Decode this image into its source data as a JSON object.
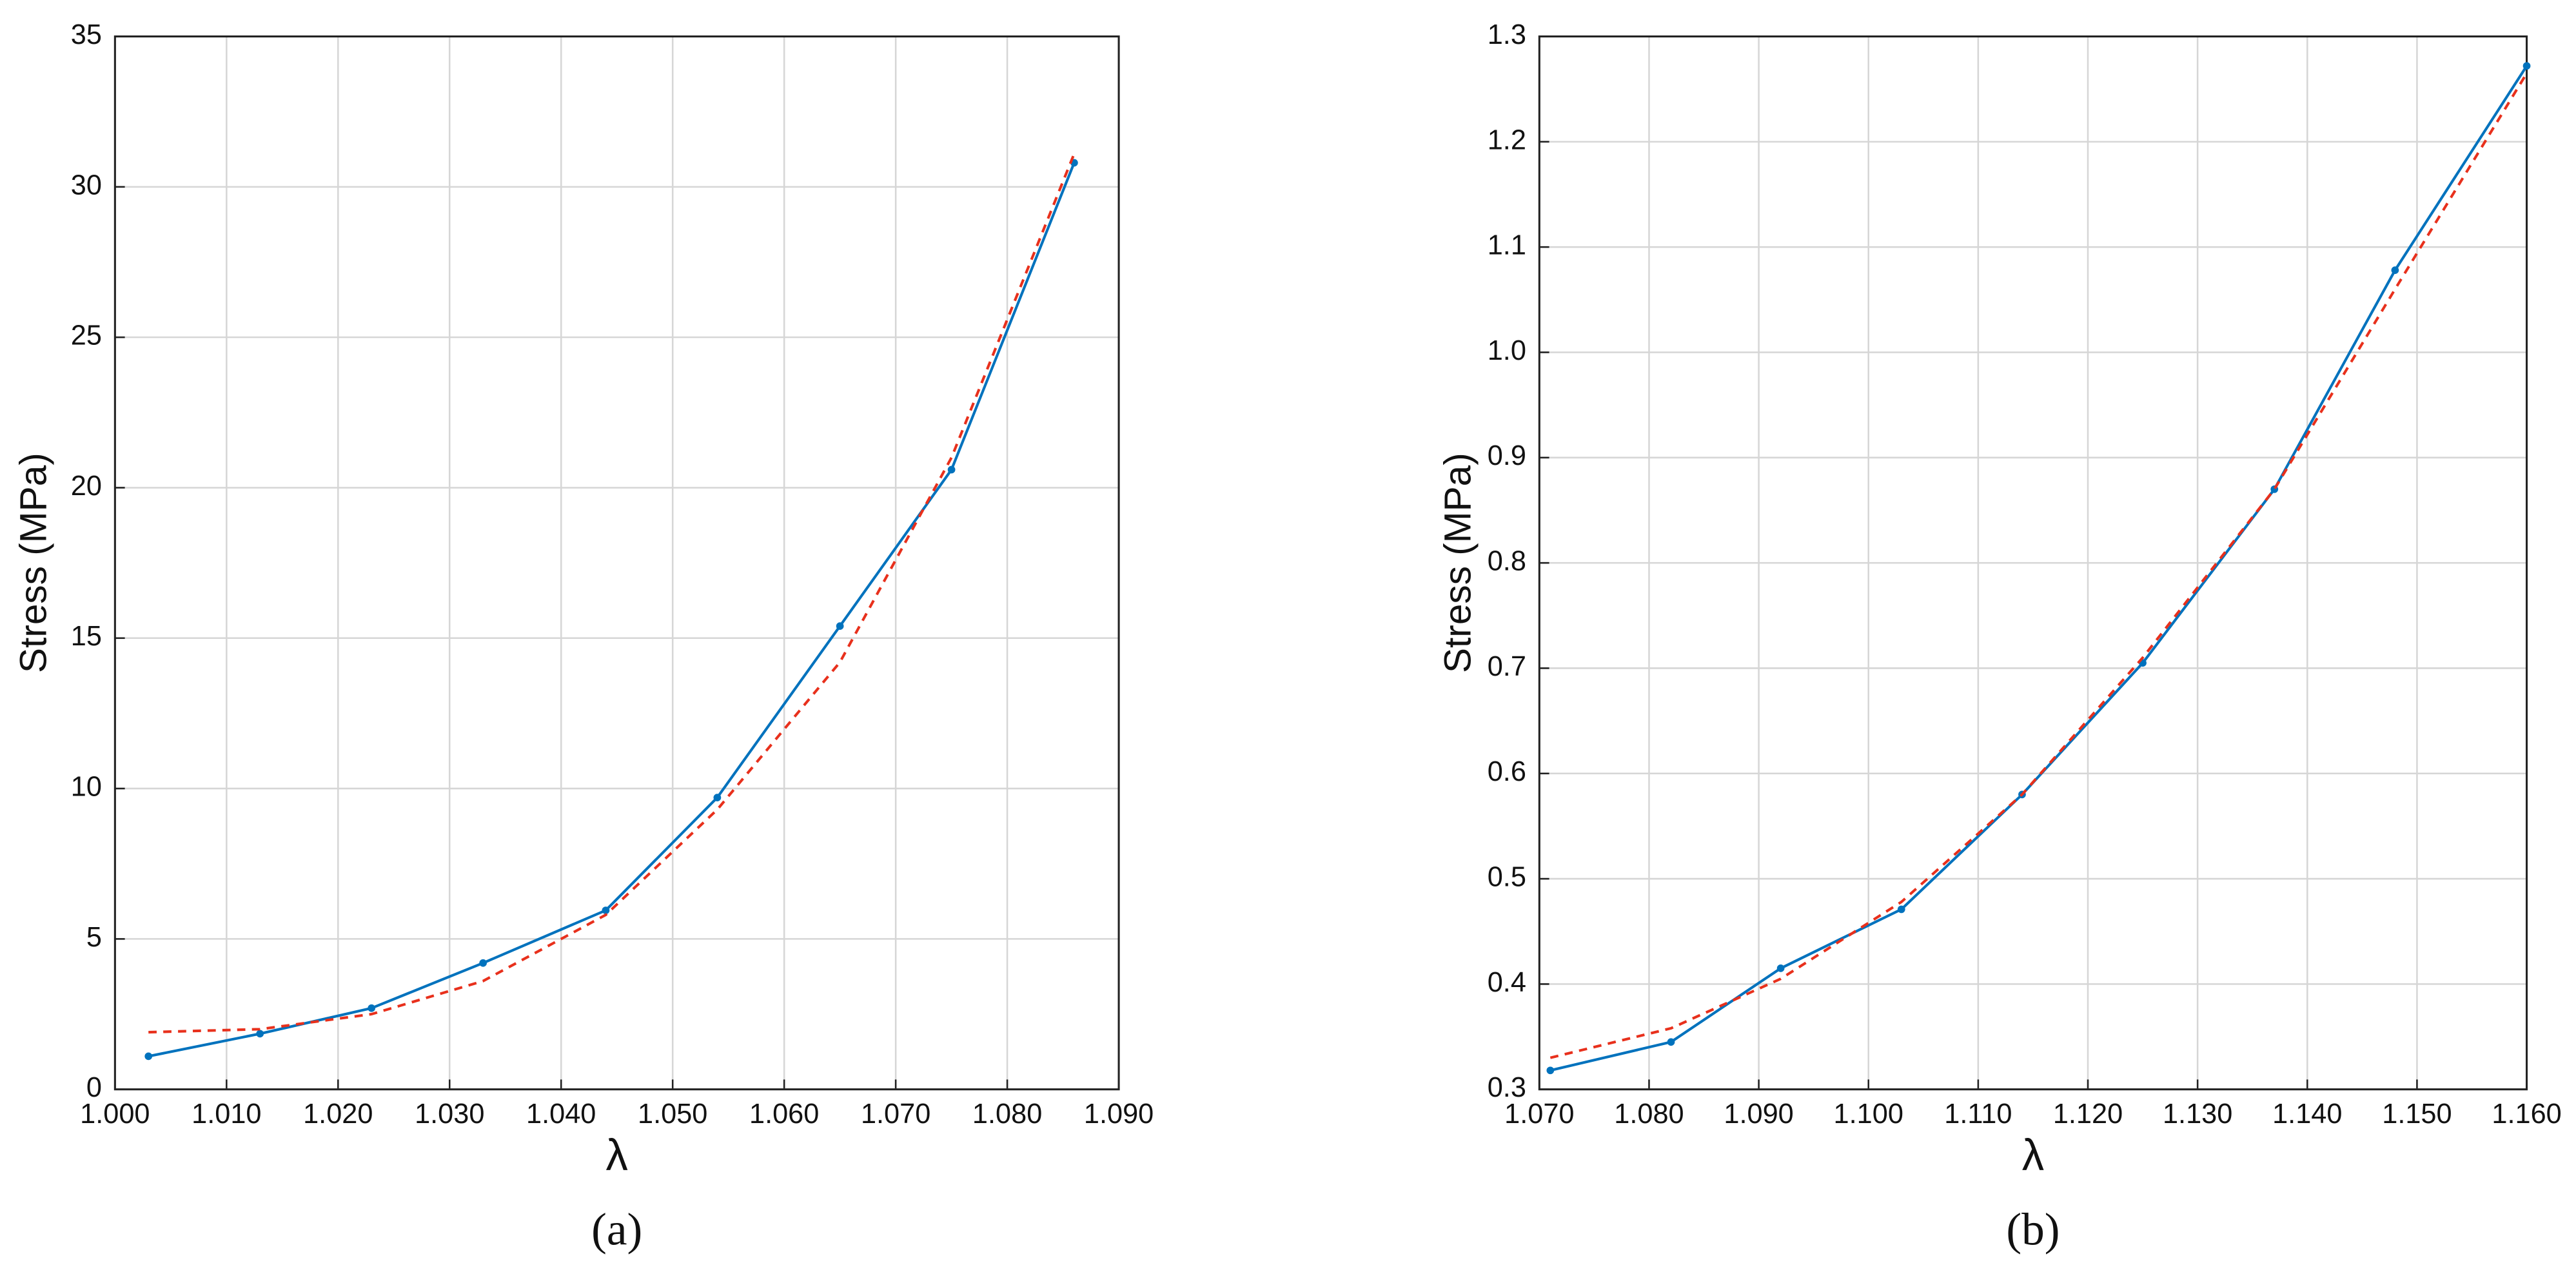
{
  "chart_data": [
    {
      "type": "line",
      "xlabel": "λ",
      "ylabel": "Stress (MPa)",
      "caption": "(a)",
      "grid": true,
      "xlim": [
        1.0,
        1.09
      ],
      "xticks": [
        {
          "value": 1.0,
          "label": "1.000"
        },
        {
          "value": 1.01,
          "label": "1.010"
        },
        {
          "value": 1.02,
          "label": "1.020"
        },
        {
          "value": 1.03,
          "label": "1.030"
        },
        {
          "value": 1.04,
          "label": "1.040"
        },
        {
          "value": 1.05,
          "label": "1.050"
        },
        {
          "value": 1.06,
          "label": "1.060"
        },
        {
          "value": 1.07,
          "label": "1.070"
        },
        {
          "value": 1.08,
          "label": "1.080"
        },
        {
          "value": 1.09,
          "label": "1.090"
        }
      ],
      "ylim": [
        0,
        35
      ],
      "yticks": [
        0,
        5,
        10,
        15,
        20,
        25,
        30,
        35
      ],
      "x": [
        1.003,
        1.013,
        1.023,
        1.033,
        1.044,
        1.054,
        1.065,
        1.075,
        1.086
      ],
      "series": [
        {
          "color": "#0072bd",
          "linestyle": "solid",
          "markers": true,
          "values": [
            1.1,
            1.85,
            2.7,
            4.2,
            5.95,
            9.7,
            15.4,
            20.6,
            30.8
          ]
        },
        {
          "color": "#e8301c",
          "linestyle": "dashed",
          "markers": false,
          "values": [
            1.9,
            2.0,
            2.5,
            3.6,
            5.8,
            9.3,
            14.2,
            21.0,
            31.1
          ]
        }
      ]
    },
    {
      "type": "line",
      "xlabel": "λ",
      "ylabel": "Stress (MPa)",
      "caption": "(b)",
      "grid": true,
      "xlim": [
        1.07,
        1.16
      ],
      "xticks": [
        {
          "value": 1.07,
          "label": "1.070"
        },
        {
          "value": 1.08,
          "label": "1.080"
        },
        {
          "value": 1.09,
          "label": "1.090"
        },
        {
          "value": 1.1,
          "label": "1.100"
        },
        {
          "value": 1.11,
          "label": "1.110"
        },
        {
          "value": 1.12,
          "label": "1.120"
        },
        {
          "value": 1.13,
          "label": "1.130"
        },
        {
          "value": 1.14,
          "label": "1.140"
        },
        {
          "value": 1.15,
          "label": "1.150"
        },
        {
          "value": 1.16,
          "label": "1.160"
        }
      ],
      "ylim": [
        0.3,
        1.3
      ],
      "yticks": [
        0.3,
        0.4,
        0.5,
        0.6,
        0.7,
        0.8,
        0.9,
        {
          "value": 1.0,
          "label": "1.0"
        },
        1.1,
        1.2,
        1.3
      ],
      "x": [
        1.071,
        1.082,
        1.092,
        1.103,
        1.114,
        1.125,
        1.137,
        1.148,
        1.16
      ],
      "series": [
        {
          "color": "#0072bd",
          "linestyle": "solid",
          "markers": true,
          "values": [
            0.318,
            0.345,
            0.415,
            0.471,
            0.58,
            0.705,
            0.87,
            1.078,
            1.272
          ]
        },
        {
          "color": "#e8301c",
          "linestyle": "dashed",
          "markers": false,
          "values": [
            0.33,
            0.358,
            0.405,
            0.478,
            0.58,
            0.71,
            0.87,
            1.06,
            1.265
          ]
        }
      ]
    }
  ]
}
